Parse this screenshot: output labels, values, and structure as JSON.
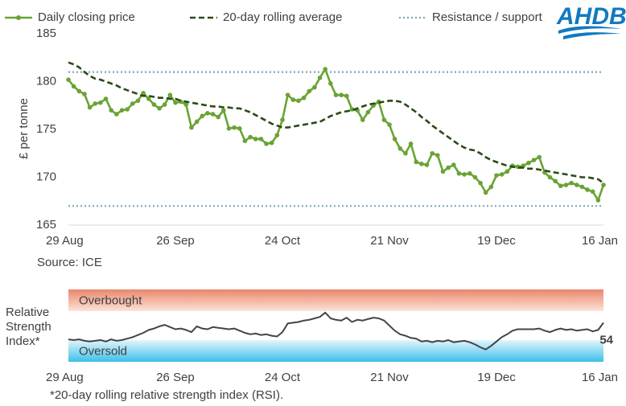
{
  "logo": "AHDB",
  "chart_data": [
    {
      "type": "line",
      "y_label": "£ per tonne",
      "source": "Source: ICE",
      "categories": [
        "29 Aug",
        null,
        null,
        null,
        null,
        null,
        null,
        null,
        null,
        null,
        null,
        null,
        null,
        null,
        null,
        null,
        null,
        null,
        null,
        null,
        "26 Sep",
        null,
        null,
        null,
        null,
        null,
        null,
        null,
        null,
        null,
        null,
        null,
        null,
        null,
        null,
        null,
        null,
        null,
        null,
        null,
        "24 Oct",
        null,
        null,
        null,
        null,
        null,
        null,
        null,
        null,
        null,
        null,
        null,
        null,
        null,
        null,
        null,
        null,
        null,
        null,
        null,
        "21 Nov",
        null,
        null,
        null,
        null,
        null,
        null,
        null,
        null,
        null,
        null,
        null,
        null,
        null,
        null,
        null,
        null,
        null,
        null,
        null,
        "19 Dec",
        null,
        null,
        null,
        null,
        null,
        null,
        null,
        null,
        null,
        null,
        null,
        null,
        null,
        null,
        null,
        null,
        null,
        null,
        null,
        "16 Jan"
      ],
      "ylim": [
        165,
        185
      ],
      "yticks": [
        165,
        170,
        175,
        180,
        185
      ],
      "grid": false,
      "series": [
        {
          "name": "Daily closing price",
          "color": "#6aa335",
          "dash": "solid",
          "markers": true,
          "values": [
            180.2,
            179.5,
            179.0,
            178.7,
            177.3,
            177.7,
            177.8,
            178.2,
            177.0,
            176.6,
            177.0,
            177.1,
            177.7,
            178.0,
            178.8,
            178.2,
            177.6,
            177.2,
            177.6,
            178.6,
            177.8,
            177.9,
            177.6,
            175.2,
            175.8,
            176.4,
            176.7,
            176.6,
            176.3,
            177.0,
            175.1,
            175.2,
            175.1,
            173.8,
            174.2,
            174.0,
            174.0,
            173.5,
            173.6,
            174.4,
            176.0,
            178.6,
            178.1,
            178.0,
            178.3,
            179.0,
            179.4,
            180.4,
            181.3,
            179.8,
            178.6,
            178.6,
            178.5,
            177.1,
            177.0,
            176.0,
            176.8,
            177.5,
            177.9,
            176.0,
            175.5,
            174.0,
            173.0,
            172.5,
            173.5,
            171.6,
            171.4,
            171.3,
            172.5,
            172.3,
            170.6,
            171.0,
            171.3,
            170.4,
            170.3,
            170.4,
            170.0,
            169.4,
            168.4,
            169.0,
            170.2,
            170.3,
            170.6,
            171.2,
            171.1,
            171.2,
            171.5,
            171.8,
            172.1,
            170.5,
            170.0,
            169.6,
            169.1,
            169.2,
            169.4,
            169.2,
            169.0,
            168.7,
            168.5,
            167.6,
            169.2
          ]
        },
        {
          "name": "20-day rolling average",
          "color": "#2b4a17",
          "dash": "dashed",
          "markers": false,
          "values": [
            182.0,
            181.8,
            181.5,
            181.0,
            180.6,
            180.3,
            180.2,
            180.0,
            179.8,
            179.6,
            179.3,
            179.1,
            178.9,
            178.7,
            178.5,
            178.5,
            178.4,
            178.3,
            178.3,
            178.2,
            178.2,
            178.0,
            177.9,
            177.8,
            177.7,
            177.6,
            177.5,
            177.4,
            177.4,
            177.3,
            177.3,
            177.2,
            177.2,
            177.0,
            176.8,
            176.5,
            176.2,
            175.9,
            175.6,
            175.4,
            175.2,
            175.2,
            175.3,
            175.4,
            175.5,
            175.6,
            175.7,
            175.8,
            176.1,
            176.4,
            176.6,
            176.8,
            176.9,
            177.0,
            177.2,
            177.4,
            177.6,
            177.7,
            177.8,
            177.9,
            178.0,
            178.0,
            177.9,
            177.6,
            177.2,
            176.8,
            176.3,
            175.9,
            175.4,
            175.0,
            174.6,
            174.2,
            173.8,
            173.4,
            173.1,
            172.9,
            172.8,
            172.5,
            172.1,
            171.8,
            171.6,
            171.4,
            171.2,
            171.1,
            171.0,
            171.0,
            170.9,
            170.9,
            170.8,
            170.7,
            170.6,
            170.5,
            170.4,
            170.3,
            170.2,
            170.1,
            170.0,
            170.0,
            169.9,
            169.8,
            169.4
          ]
        }
      ],
      "reference_lines": {
        "name": "Resistance / support",
        "color": "#7fa7bd",
        "values": [
          181,
          167
        ]
      }
    },
    {
      "type": "line",
      "y_label": [
        "Relative",
        "Strength",
        "Index*"
      ],
      "footnote": "*20-day rolling relative strength index (RSI).",
      "categories": [
        "29 Aug",
        null,
        null,
        null,
        null,
        null,
        null,
        null,
        null,
        null,
        null,
        null,
        null,
        null,
        null,
        null,
        null,
        null,
        null,
        null,
        "26 Sep",
        null,
        null,
        null,
        null,
        null,
        null,
        null,
        null,
        null,
        null,
        null,
        null,
        null,
        null,
        null,
        null,
        null,
        null,
        null,
        "24 Oct",
        null,
        null,
        null,
        null,
        null,
        null,
        null,
        null,
        null,
        null,
        null,
        null,
        null,
        null,
        null,
        null,
        null,
        null,
        null,
        "21 Nov",
        null,
        null,
        null,
        null,
        null,
        null,
        null,
        null,
        null,
        null,
        null,
        null,
        null,
        null,
        null,
        null,
        null,
        null,
        null,
        "19 Dec",
        null,
        null,
        null,
        null,
        null,
        null,
        null,
        null,
        null,
        null,
        null,
        null,
        null,
        null,
        null,
        null,
        null,
        null,
        null,
        "16 Jan"
      ],
      "ylim": [
        0,
        100
      ],
      "bands": [
        {
          "label": "Overbought",
          "range": [
            70,
            100
          ],
          "color": "#e9876b"
        },
        {
          "label": "Oversold",
          "range": [
            0,
            30
          ],
          "color": "#3dbfea"
        }
      ],
      "label_last": true,
      "series": [
        {
          "color": "#454545",
          "values": [
            31,
            30,
            31,
            29,
            28,
            29,
            30,
            28,
            31,
            29,
            30,
            32,
            34,
            37,
            40,
            44,
            46,
            49,
            51,
            48,
            45,
            46,
            44,
            41,
            49,
            46,
            45,
            48,
            47,
            46,
            45,
            46,
            43,
            40,
            38,
            39,
            37,
            38,
            36,
            35,
            41,
            53,
            54,
            55,
            57,
            58,
            60,
            62,
            68,
            60,
            58,
            57,
            61,
            55,
            58,
            57,
            59,
            61,
            60,
            57,
            50,
            43,
            38,
            36,
            33,
            32,
            28,
            29,
            27,
            29,
            28,
            30,
            27,
            28,
            29,
            27,
            24,
            20,
            17,
            22,
            28,
            34,
            38,
            43,
            45,
            45,
            45,
            45,
            46,
            43,
            41,
            44,
            46,
            44,
            45,
            43,
            44,
            45,
            42,
            44,
            54
          ]
        }
      ]
    }
  ]
}
